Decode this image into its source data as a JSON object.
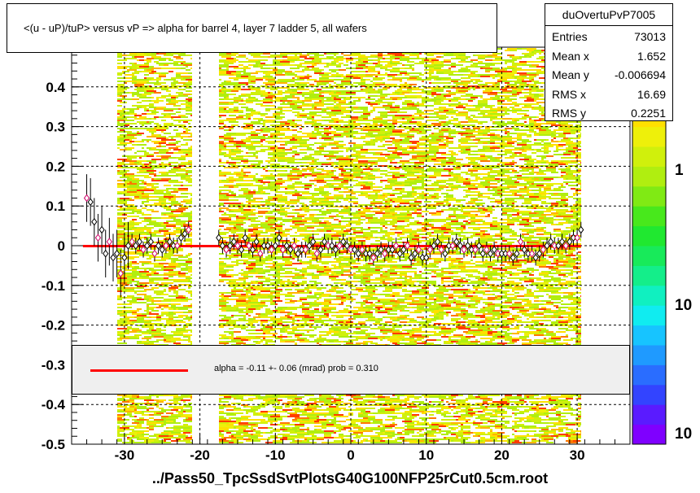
{
  "chart_data": {
    "type": "heatmap",
    "title": "<(u - uP)/tuP> versus   vP => alpha for barrel 4, layer 7 ladder 5, all wafers",
    "xlabel": "../Pass50_TpcSsdSvtPlotsG40G100NFP25rCut0.5cm.root",
    "ylabel": "",
    "xlim": [
      -37,
      37
    ],
    "ylim": [
      -0.5,
      0.5
    ],
    "x_ticks": [
      "-30",
      "-20",
      "-10",
      "0",
      "10",
      "20",
      "30"
    ],
    "x_tick_values": [
      -30,
      -20,
      -10,
      0,
      10,
      20,
      30
    ],
    "y_ticks": [
      "-0.5",
      "-0.4",
      "-0.3",
      "-0.2",
      "-0.1",
      "0",
      "0.1",
      "0.2",
      "0.3",
      "0.4",
      "0.5"
    ],
    "y_tick_values": [
      -0.5,
      -0.4,
      -0.3,
      -0.2,
      -0.1,
      0,
      0.1,
      0.2,
      0.3,
      0.4,
      0.5
    ],
    "grid": true,
    "log_z": true,
    "z_labels": [
      "1",
      "10",
      "10"
    ],
    "populated_x_bands": [
      [
        -31,
        -21
      ],
      [
        -17.5,
        30.5
      ]
    ],
    "colors": {
      "palette": [
        "#7f00ff",
        "#5a1bff",
        "#3344ff",
        "#2a6dff",
        "#1f9aff",
        "#17c4ff",
        "#10ecf0",
        "#10f0c0",
        "#14ee8a",
        "#18ea5a",
        "#20e830",
        "#48e81c",
        "#80ea14",
        "#b0ee10",
        "#d0f00c",
        "#eef00a",
        "#ffe000",
        "#ffb400",
        "#ff7800",
        "#ff3c00"
      ],
      "fit": "#ff0000",
      "profile_marker": "#000000",
      "profile_marker_alt": "#cc0066"
    },
    "profile_points": {
      "x": [
        -35,
        -34.5,
        -34,
        -33.5,
        -33,
        -32.5,
        -32,
        -31.5,
        -31,
        -30.5,
        -30,
        -29.5,
        -29,
        -28.5,
        -28,
        -27.5,
        -27,
        -26.5,
        -26,
        -25.5,
        -25,
        -24.5,
        -24,
        -23.5,
        -23,
        -22.5,
        -22,
        -21.5,
        -17.5,
        -17,
        -16.5,
        -16,
        -15.5,
        -15,
        -14.5,
        -14,
        -13.5,
        -13,
        -12.5,
        -12,
        -11.5,
        -11,
        -10.5,
        -10,
        -9.5,
        -9,
        -8.5,
        -8,
        -7.5,
        -7,
        -6.5,
        -6,
        -5.5,
        -5,
        -4.5,
        -4,
        -3.5,
        -3,
        -2.5,
        -2,
        -1.5,
        -1,
        -0.5,
        0,
        0.5,
        1,
        1.5,
        2,
        2.5,
        3,
        3.5,
        4,
        4.5,
        5,
        5.5,
        6,
        6.5,
        7,
        7.5,
        8,
        8.5,
        9,
        9.5,
        10,
        10.5,
        11,
        11.5,
        12,
        12.5,
        13,
        13.5,
        14,
        14.5,
        15,
        15.5,
        16,
        16.5,
        17,
        17.5,
        18,
        18.5,
        19,
        19.5,
        20,
        20.5,
        21,
        21.5,
        22,
        22.5,
        23,
        23.5,
        24,
        24.5,
        25,
        25.5,
        26,
        26.5,
        27,
        27.5,
        28,
        28.5,
        29,
        29.5,
        30,
        30.5
      ],
      "y": [
        0.12,
        0.11,
        0.06,
        0.02,
        0.04,
        -0.02,
        0.01,
        -0.03,
        -0.02,
        -0.07,
        -0.03,
        0.0,
        0.01,
        0.0,
        0.01,
        -0.01,
        0.0,
        0.01,
        -0.02,
        0.0,
        -0.01,
        0.0,
        0.01,
        0.0,
        0.0,
        0.02,
        0.03,
        0.04,
        0.02,
        0.0,
        -0.01,
        0.0,
        0.01,
        0.0,
        -0.01,
        0.02,
        0.0,
        -0.01,
        0.01,
        -0.02,
        0.0,
        0.0,
        -0.01,
        0.0,
        0.02,
        -0.01,
        0.0,
        -0.01,
        0.0,
        -0.02,
        -0.01,
        -0.01,
        0.0,
        0.01,
        -0.02,
        -0.01,
        0.01,
        0.0,
        0.0,
        -0.01,
        0.0,
        0.01,
        0.0,
        -0.01,
        -0.01,
        -0.02,
        -0.01,
        -0.02,
        -0.02,
        -0.03,
        -0.02,
        -0.01,
        -0.02,
        -0.01,
        -0.01,
        0.0,
        -0.02,
        -0.01,
        0.0,
        -0.03,
        -0.02,
        -0.01,
        -0.03,
        -0.03,
        -0.01,
        0.0,
        0.01,
        -0.01,
        -0.02,
        0.0,
        0.0,
        0.01,
        0.0,
        -0.01,
        0.0,
        -0.01,
        -0.01,
        0.0,
        -0.02,
        -0.01,
        -0.02,
        -0.01,
        -0.02,
        -0.02,
        -0.02,
        -0.02,
        -0.03,
        -0.02,
        0.01,
        -0.01,
        -0.02,
        -0.02,
        -0.03,
        -0.02,
        -0.01,
        0.0,
        0.01,
        0.0,
        0.0,
        0.01,
        0.0,
        0.01,
        0.02,
        0.02,
        0.04
      ]
    },
    "fit": {
      "name": "alpha",
      "y": -0.0011,
      "x_range": [
        -35.5,
        30.5
      ]
    }
  },
  "stats": {
    "name": "duOvertuPvP7005",
    "rows": [
      {
        "key": "Entries",
        "value": "73013"
      },
      {
        "key": "Mean x",
        "value": "1.652"
      },
      {
        "key": "Mean y",
        "value": "-0.006694"
      },
      {
        "key": "RMS x",
        "value": "16.69"
      },
      {
        "key": "RMS y",
        "value": "0.2251"
      }
    ]
  },
  "fit_legend": {
    "text": "alpha =   -0.11 +-  0.06 (mrad) prob = 0.310"
  }
}
